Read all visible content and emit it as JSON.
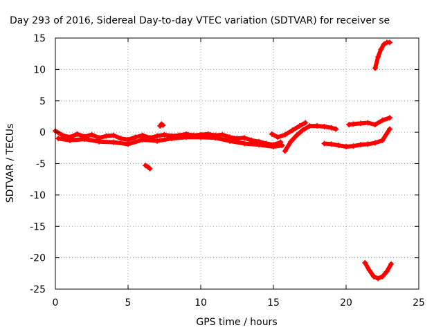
{
  "chart_data": {
    "type": "scatter",
    "title": "Day 293 of 2016, Sidereal Day-to-day VTEC variation (SDTVAR) for receiver se",
    "xlabel": "GPS time / hours",
    "ylabel": "SDTVAR / TECUs",
    "xlim": [
      0,
      25
    ],
    "ylim": [
      -25,
      15
    ],
    "xticks": [
      "0",
      "5",
      "10",
      "15",
      "20",
      "25"
    ],
    "yticks": [
      "15",
      "10",
      "5",
      "0",
      "-5",
      "-10",
      "-15",
      "-20",
      "-25"
    ],
    "grid": true,
    "legend": "none",
    "series_color": "#ff0000",
    "series": [
      {
        "x": [
          0,
          0.5,
          1,
          1.5,
          2,
          2.5,
          3,
          3.5,
          4,
          4.5,
          5,
          5.5,
          6,
          6.5,
          7,
          7.5,
          8,
          8.5,
          9,
          9.5,
          10,
          10.5,
          11,
          11.5,
          12,
          12.5,
          13,
          13.5,
          14,
          14.5,
          15,
          15.5
        ],
        "y": [
          0.2,
          -0.5,
          -0.8,
          -0.3,
          -0.7,
          -0.4,
          -0.9,
          -0.6,
          -0.5,
          -1.0,
          -1.2,
          -0.8,
          -0.5,
          -0.9,
          -0.6,
          -0.4,
          -0.6,
          -0.5,
          -0.3,
          -0.5,
          -0.4,
          -0.3,
          -0.5,
          -0.4,
          -0.8,
          -1.0,
          -0.9,
          -1.3,
          -1.5,
          -1.8,
          -2.0,
          -1.6
        ]
      },
      {
        "x": [
          0.2,
          1,
          2,
          3,
          4,
          5,
          6,
          7,
          8,
          9,
          10,
          11,
          12,
          13,
          14,
          15,
          15.6
        ],
        "y": [
          -1.0,
          -1.3,
          -1.1,
          -1.5,
          -1.6,
          -1.9,
          -1.2,
          -1.4,
          -1.0,
          -0.8,
          -0.8,
          -0.9,
          -1.4,
          -1.8,
          -2.0,
          -2.3,
          -2.1
        ]
      },
      {
        "x": [
          15.8,
          16.2,
          16.6,
          17,
          17.5,
          18,
          18.5,
          19,
          19.3
        ],
        "y": [
          -3.0,
          -1.5,
          -0.5,
          0.3,
          1.0,
          1.0,
          0.9,
          0.7,
          0.5
        ]
      },
      {
        "x": [
          14.9,
          15.3,
          15.8,
          16.3,
          16.8,
          17.2
        ],
        "y": [
          -0.3,
          -0.8,
          -0.4,
          0.3,
          1.0,
          1.5
        ]
      },
      {
        "x": [
          18.5,
          19,
          19.5,
          20,
          20.5,
          21,
          21.5,
          22,
          22.5,
          23
        ],
        "y": [
          -1.8,
          -1.9,
          -2.1,
          -2.3,
          -2.2,
          -2.0,
          -1.9,
          -1.7,
          -1.3,
          0.5
        ]
      },
      {
        "x": [
          20.2,
          20.5,
          21,
          21.5,
          22,
          22.5,
          23
        ],
        "y": [
          1.2,
          1.3,
          1.4,
          1.5,
          1.2,
          1.9,
          2.3
        ]
      },
      {
        "x": [
          22.0,
          22.2,
          22.4,
          22.6,
          22.8,
          23.0
        ],
        "y": [
          10.2,
          12.0,
          13.2,
          14.0,
          14.3,
          14.3
        ]
      },
      {
        "x": [
          21.3,
          21.6,
          21.9,
          22.2,
          22.5,
          22.8,
          23.1
        ],
        "y": [
          -20.8,
          -22.0,
          -23.0,
          -23.3,
          -23.0,
          -22.2,
          -21.0
        ]
      },
      {
        "x": [
          6.2,
          6.4,
          6.5
        ],
        "y": [
          -5.3,
          -5.6,
          -5.8
        ]
      },
      {
        "x": [
          7.2,
          7.3,
          7.4
        ],
        "y": [
          1.0,
          1.3,
          1.1
        ]
      }
    ]
  }
}
